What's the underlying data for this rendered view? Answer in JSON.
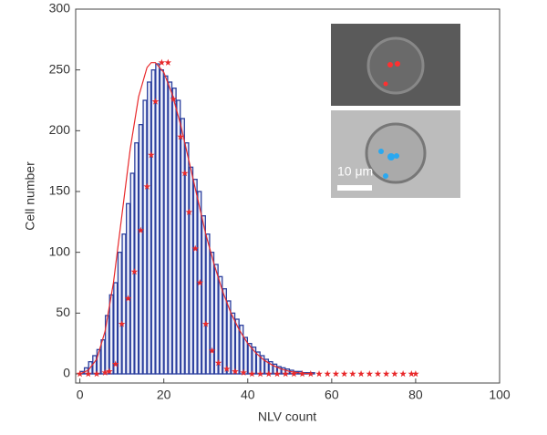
{
  "chart_data": {
    "type": "histogram",
    "x_label": "NLV count",
    "y_label": "Cell number",
    "annotation": "10 μm",
    "bins": [
      0,
      1,
      2,
      3,
      4,
      5,
      6,
      7,
      8,
      9,
      10,
      11,
      12,
      13,
      14,
      15,
      16,
      17,
      18,
      19,
      20,
      21,
      22,
      23,
      24,
      25,
      26,
      27,
      28,
      29,
      30,
      31,
      32,
      33,
      34,
      35,
      36,
      37,
      38,
      39,
      40,
      41,
      42,
      43,
      44,
      45,
      46,
      47,
      48,
      49,
      50,
      51,
      52,
      53,
      54,
      55,
      56
    ],
    "counts": [
      2,
      5,
      10,
      15,
      20,
      28,
      48,
      65,
      75,
      100,
      115,
      140,
      165,
      190,
      205,
      225,
      240,
      250,
      255,
      250,
      245,
      240,
      235,
      225,
      210,
      190,
      170,
      160,
      150,
      130,
      115,
      100,
      90,
      80,
      70,
      60,
      50,
      45,
      40,
      30,
      25,
      22,
      18,
      15,
      12,
      10,
      8,
      6,
      5,
      4,
      3,
      2,
      2,
      1,
      1,
      1
    ],
    "color": "#2b3f9e",
    "series": [
      {
        "type": "scatter",
        "color": "#e8282a",
        "x": [
          0,
          2,
          4,
          6,
          7,
          8.5,
          10,
          11.5,
          13,
          14.5,
          16,
          17,
          18,
          19.5,
          21,
          22.3,
          24,
          25,
          26,
          27.5,
          28.6,
          30,
          31.5,
          33,
          35,
          37,
          39,
          41,
          43,
          45,
          47,
          49,
          51,
          53,
          55,
          57,
          59,
          61,
          63,
          65,
          67,
          69,
          71,
          73,
          75,
          77,
          79,
          80
        ],
        "values": [
          0,
          0,
          0,
          1,
          2,
          8,
          41,
          62,
          84,
          118,
          154,
          180,
          224,
          256,
          256,
          226,
          195,
          165,
          133,
          103,
          75,
          41,
          19,
          9,
          4,
          2,
          1,
          0,
          0,
          0,
          0,
          0,
          0,
          0,
          0,
          0,
          0,
          0,
          0,
          0,
          0,
          0,
          0,
          0,
          0,
          0,
          0,
          0
        ]
      },
      {
        "type": "line",
        "color": "#e8282a",
        "x": [
          0,
          2,
          4,
          6,
          8,
          10,
          12,
          14,
          16,
          17,
          18,
          20,
          22,
          24,
          26,
          28,
          30,
          32,
          34,
          36,
          38,
          40,
          42,
          44,
          46,
          48,
          50,
          52,
          55
        ],
        "values": [
          0,
          3,
          12,
          35,
          75,
          130,
          185,
          228,
          252,
          256,
          256,
          248,
          230,
          205,
          175,
          145,
          115,
          90,
          68,
          50,
          36,
          25,
          17,
          11,
          7,
          4,
          2,
          1,
          0
        ]
      }
    ],
    "xlim": [
      -1,
      100
    ],
    "ylim": [
      -7.5,
      300
    ],
    "xticks": [
      0,
      20,
      40,
      60,
      80,
      100
    ],
    "yticks": [
      0,
      50,
      100,
      150,
      200,
      250,
      300
    ]
  }
}
